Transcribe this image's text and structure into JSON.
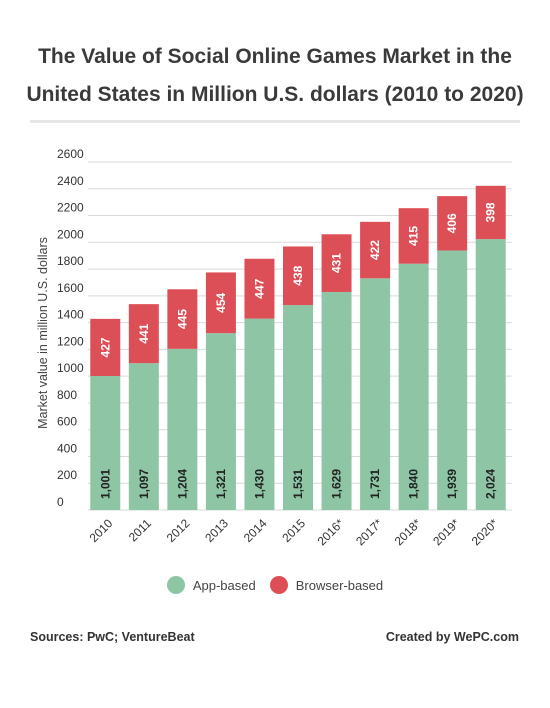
{
  "title_line1": "The Value of Social Online Games Market in the",
  "title_line2": "United States in Million U.S. dollars (2010 to 2020)",
  "footer": {
    "sources": "Sources: PwC; VentureBeat",
    "credit": "Created by WePC.com"
  },
  "colors": {
    "app": "#8ec6a5",
    "browser": "#dd4f57",
    "grid": "#d9d9d9",
    "axis_text": "#333333"
  },
  "chart_data": {
    "type": "bar",
    "stacked": true,
    "title": "The Value of Social Online Games Market in the United States in Million U.S. dollars (2010 to 2020)",
    "ylabel": "Market value in million U.S. dollars",
    "xlabel": "",
    "ylim": [
      0,
      2600
    ],
    "yticks": [
      0,
      200,
      400,
      600,
      800,
      1000,
      1200,
      1400,
      1600,
      1800,
      2000,
      2200,
      2400,
      2600
    ],
    "grid": true,
    "legend_position": "bottom",
    "categories": [
      "2010",
      "2011",
      "2012",
      "2013",
      "2014",
      "2015",
      "2016*",
      "2017*",
      "2018*",
      "2019*",
      "2020*"
    ],
    "series": [
      {
        "name": "App-based",
        "values": [
          1001,
          1097,
          1204,
          1321,
          1430,
          1531,
          1629,
          1731,
          1840,
          1939,
          2024
        ],
        "labels": [
          "1,001",
          "1,097",
          "1,204",
          "1,321",
          "1,430",
          "1,531",
          "1,629",
          "1,731",
          "1,840",
          "1,939",
          "2,024"
        ]
      },
      {
        "name": "Browser-based",
        "values": [
          427,
          441,
          445,
          454,
          447,
          438,
          431,
          422,
          415,
          406,
          398
        ],
        "labels": [
          "427",
          "441",
          "445",
          "454",
          "447",
          "438",
          "431",
          "422",
          "415",
          "406",
          "398"
        ]
      }
    ]
  }
}
